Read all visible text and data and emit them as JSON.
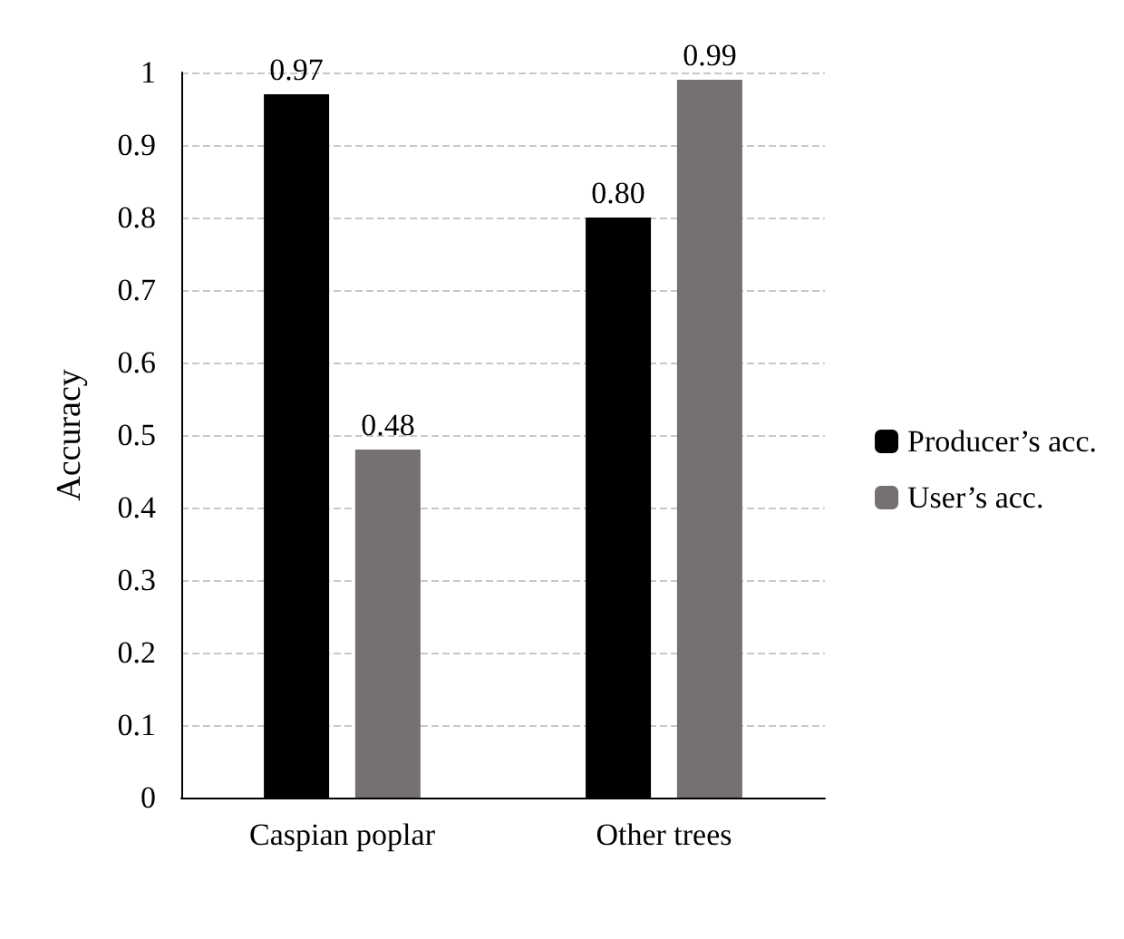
{
  "chart_data": {
    "type": "bar",
    "ylabel": "Accuracy",
    "categories": [
      "Caspian poplar",
      "Other trees"
    ],
    "series": [
      {
        "name": "Producer’s acc.",
        "color": "#000000",
        "values": [
          0.97,
          0.8
        ],
        "value_labels": [
          "0.97",
          "0.80"
        ]
      },
      {
        "name": "User’s acc.",
        "color": "#767171",
        "values": [
          0.48,
          0.99
        ],
        "value_labels": [
          "0.48",
          "0.99"
        ]
      }
    ],
    "ylim": [
      0,
      1
    ],
    "yticks": [
      0,
      0.1,
      0.2,
      0.3,
      0.4,
      0.5,
      0.6,
      0.7,
      0.8,
      0.9,
      1
    ],
    "grid": "y",
    "legend": "right"
  }
}
